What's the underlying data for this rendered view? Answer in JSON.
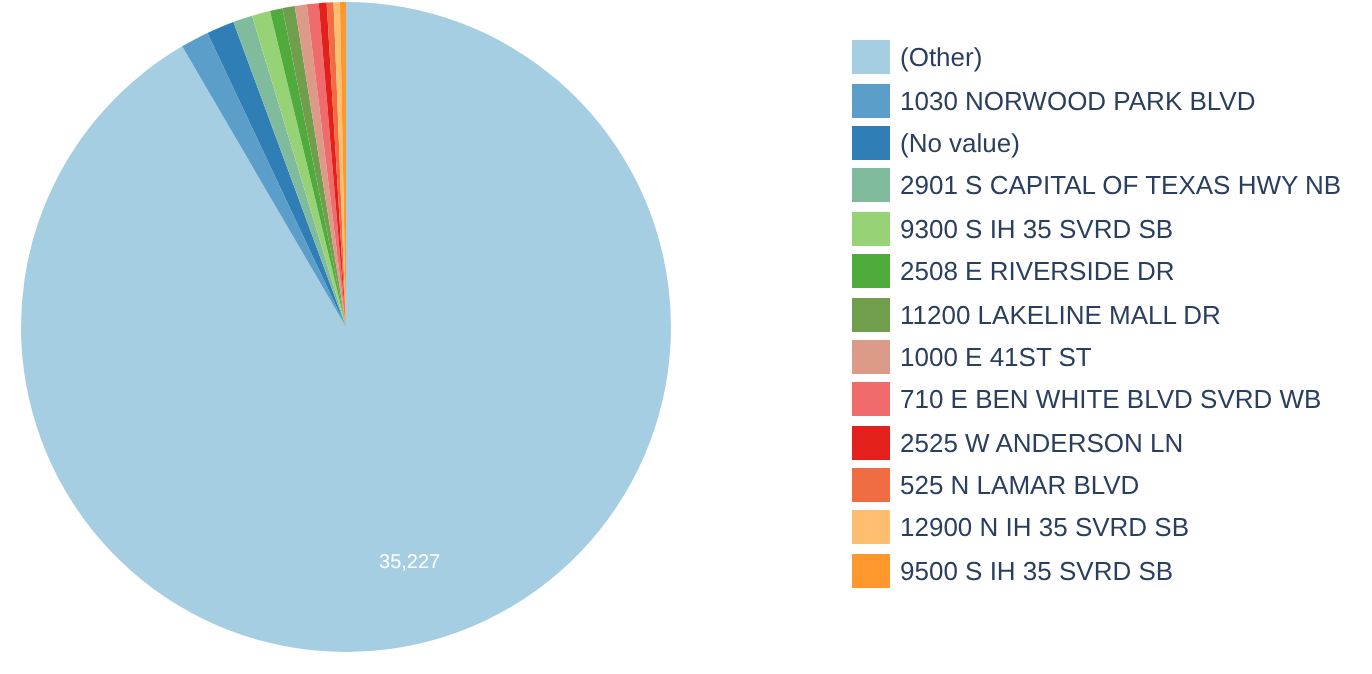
{
  "chart_data": {
    "type": "pie",
    "categories": [
      "(Other)",
      "1030 NORWOOD PARK BLVD",
      "(No value)",
      "2901 S CAPITAL OF TEXAS HWY NB",
      "9300 S IH 35 SVRD SB",
      "2508 E RIVERSIDE DR",
      "11200 LAKELINE MALL DR",
      "1000 E 41ST ST",
      "710 E BEN WHITE BLVD SVRD WB",
      "2525 W ANDERSON LN",
      "525 N LAMAR BLVD",
      "12900 N IH 35 SVRD SB",
      "9500 S IH 35 SVRD SB"
    ],
    "values": [
      35227,
      540,
      530,
      370,
      350,
      240,
      235,
      230,
      225,
      150,
      130,
      120,
      115
    ],
    "colors": [
      "#a6cee3",
      "#5b9ec9",
      "#2f7eb6",
      "#7fbb9c",
      "#98d277",
      "#4fac3c",
      "#6f9e4c",
      "#dc9a88",
      "#f06c6c",
      "#e3201b",
      "#f06d43",
      "#fdbf6f",
      "#fe982c"
    ],
    "value_labels": [
      "35,227",
      null,
      null,
      null,
      null,
      null,
      null,
      null,
      null,
      null,
      null,
      null,
      null
    ],
    "legend": "right"
  }
}
